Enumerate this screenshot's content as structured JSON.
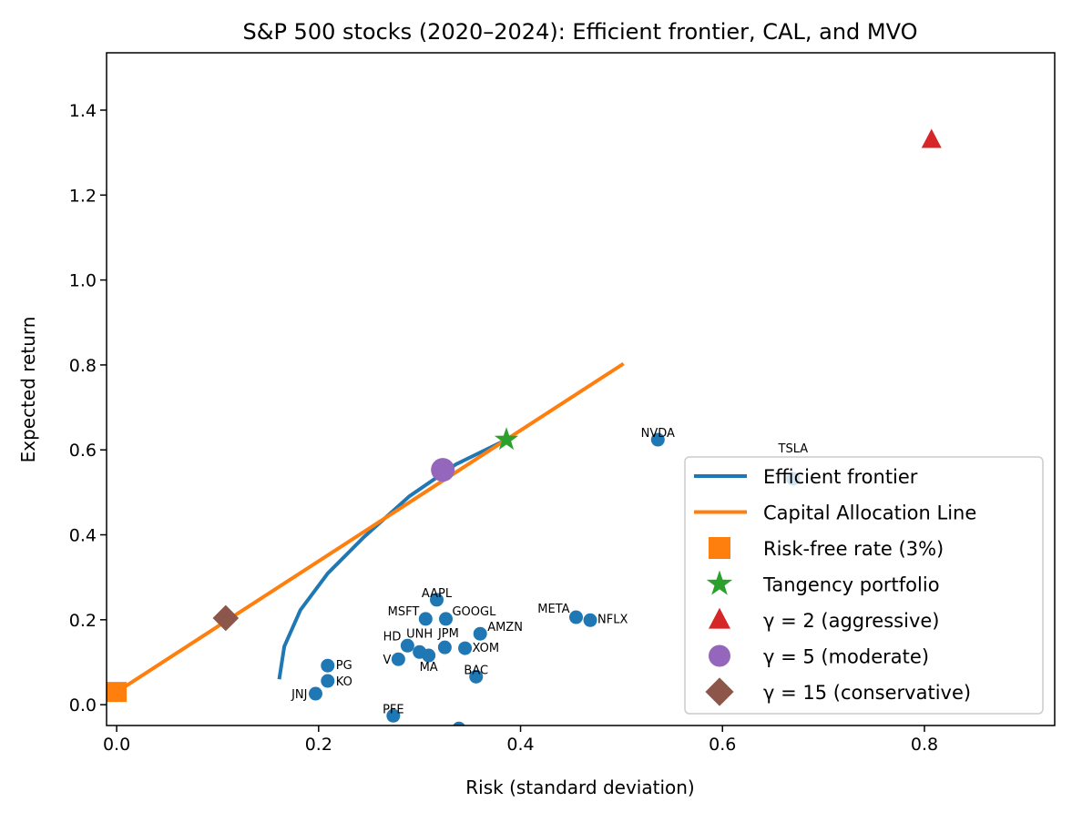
{
  "chart_data": {
    "type": "scatter",
    "title": "S&P 500 stocks (2020–2024): Efficient frontier, CAL, and MVO",
    "xlabel": "Risk (standard deviation)",
    "ylabel": "Expected return",
    "xlim": [
      -0.01,
      0.929
    ],
    "ylim": [
      -0.049,
      1.535
    ],
    "xticks": [
      0.0,
      0.2,
      0.4,
      0.6,
      0.8
    ],
    "xtick_labels": [
      "0.0",
      "0.2",
      "0.4",
      "0.6",
      "0.8"
    ],
    "yticks": [
      0.0,
      0.2,
      0.4,
      0.6,
      0.8,
      1.0,
      1.2,
      1.4
    ],
    "ytick_labels": [
      "0.0",
      "0.2",
      "0.4",
      "0.6",
      "0.8",
      "1.0",
      "1.2",
      "1.4"
    ],
    "grid": false,
    "legend_placement": "lower-right",
    "stocks": [
      {
        "name": "AAPL",
        "risk": 0.317,
        "ret": 0.247
      },
      {
        "name": "MSFT",
        "risk": 0.306,
        "ret": 0.202
      },
      {
        "name": "GOOGL",
        "risk": 0.326,
        "ret": 0.202
      },
      {
        "name": "AMZN",
        "risk": 0.36,
        "ret": 0.167
      },
      {
        "name": "HD",
        "risk": 0.288,
        "ret": 0.139
      },
      {
        "name": "UNH",
        "risk": 0.3,
        "ret": 0.124
      },
      {
        "name": "MA",
        "risk": 0.309,
        "ret": 0.116
      },
      {
        "name": "V",
        "risk": 0.279,
        "ret": 0.107
      },
      {
        "name": "JPM",
        "risk": 0.325,
        "ret": 0.135
      },
      {
        "name": "XOM",
        "risk": 0.345,
        "ret": 0.133
      },
      {
        "name": "BAC",
        "risk": 0.356,
        "ret": 0.066
      },
      {
        "name": "PG",
        "risk": 0.209,
        "ret": 0.092
      },
      {
        "name": "KO",
        "risk": 0.209,
        "ret": 0.056
      },
      {
        "name": "JNJ",
        "risk": 0.197,
        "ret": 0.026
      },
      {
        "name": "PFE",
        "risk": 0.274,
        "ret": -0.026
      },
      {
        "name": "",
        "risk": 0.339,
        "ret": -0.056
      },
      {
        "name": "NVDA",
        "risk": 0.536,
        "ret": 0.624
      },
      {
        "name": "META",
        "risk": 0.455,
        "ret": 0.206
      },
      {
        "name": "NFLX",
        "risk": 0.469,
        "ret": 0.199
      },
      {
        "name": "TSLA",
        "risk": 0.67,
        "ret": 0.532
      }
    ],
    "series": [
      {
        "name": "Efficient frontier",
        "color": "#1f77b4",
        "x": [
          0.161,
          0.166,
          0.182,
          0.209,
          0.245,
          0.29,
          0.336,
          0.386
        ],
        "y": [
          0.06,
          0.137,
          0.223,
          0.309,
          0.395,
          0.491,
          0.566,
          0.624
        ]
      },
      {
        "name": "Capital Allocation Line",
        "color": "#ff7f0e",
        "x": [
          0.0,
          0.502
        ],
        "y": [
          0.03,
          0.803
        ]
      }
    ],
    "markers": [
      {
        "name": "Risk-free rate (3%)",
        "shape": "square",
        "color": "#ff7f0e",
        "risk": 0.0,
        "ret": 0.03
      },
      {
        "name": "Tangency portfolio",
        "shape": "star",
        "color": "#2ca02c",
        "risk": 0.386,
        "ret": 0.624
      },
      {
        "name": "γ = 2 (aggressive)",
        "shape": "triangle",
        "color": "#d62728",
        "risk": 0.807,
        "ret": 1.33
      },
      {
        "name": "γ = 5 (moderate)",
        "shape": "circle",
        "color": "#9467bd",
        "risk": 0.323,
        "ret": 0.553
      },
      {
        "name": "γ = 15 (conservative)",
        "shape": "diamond",
        "color": "#8c564b",
        "risk": 0.108,
        "ret": 0.204
      }
    ],
    "stock_color": "#1f77b4"
  }
}
